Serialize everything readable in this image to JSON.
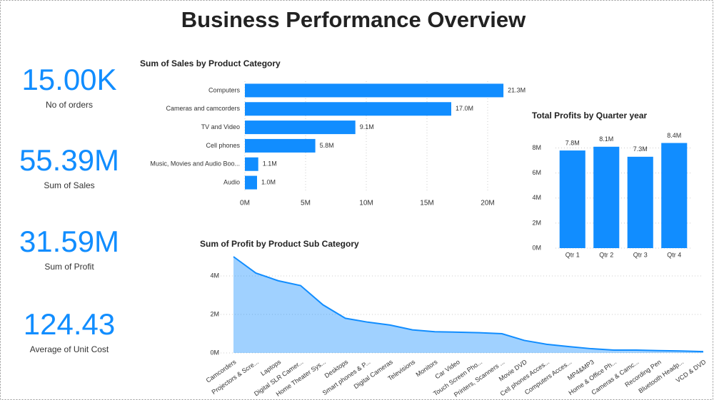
{
  "title": "Business Performance Overview",
  "kpis": [
    {
      "value": "15.00K",
      "label": "No of orders"
    },
    {
      "value": "55.39M",
      "label": "Sum of Sales"
    },
    {
      "value": "31.59M",
      "label": "Sum of Profit"
    },
    {
      "value": "124.43",
      "label": "Average of Unit Cost"
    }
  ],
  "chart_data": [
    {
      "type": "bar",
      "orientation": "horizontal",
      "title": "Sum of Sales by Product Category",
      "categories": [
        "Computers",
        "Cameras and camcorders",
        "TV and Video",
        "Cell phones",
        "Music, Movies and Audio Boo...",
        "Audio"
      ],
      "values": [
        21300000,
        17000000,
        9100000,
        5800000,
        1100000,
        1000000
      ],
      "value_labels": [
        "21.3M",
        "17.0M",
        "9.1M",
        "5.8M",
        "1.1M",
        "1.0M"
      ],
      "color": "#118DFF",
      "grid": true,
      "xlim": [
        0,
        22000000
      ],
      "xticks": [
        {
          "value": 0,
          "label": "0M"
        },
        {
          "value": 5000000,
          "label": "5M"
        },
        {
          "value": 10000000,
          "label": "10M"
        },
        {
          "value": 15000000,
          "label": "15M"
        },
        {
          "value": 20000000,
          "label": "20M"
        }
      ]
    },
    {
      "type": "bar",
      "orientation": "vertical",
      "title": "Total Profits by Quarter year",
      "categories": [
        "Qtr 1",
        "Qtr 2",
        "Qtr 3",
        "Qtr 4"
      ],
      "values": [
        7800000,
        8100000,
        7300000,
        8400000
      ],
      "value_labels": [
        "7.8M",
        "8.1M",
        "7.3M",
        "8.4M"
      ],
      "color": "#118DFF",
      "grid": true,
      "ylim": [
        0,
        9000000
      ],
      "yticks": [
        {
          "value": 0,
          "label": "0M"
        },
        {
          "value": 2000000,
          "label": "2M"
        },
        {
          "value": 4000000,
          "label": "4M"
        },
        {
          "value": 6000000,
          "label": "6M"
        },
        {
          "value": 8000000,
          "label": "8M"
        }
      ]
    },
    {
      "type": "area",
      "title": "Sum of Profit by Product Sub Category",
      "categories": [
        "Camcorders",
        "Projectors & Scre...",
        "Laptops",
        "Digital SLR Camer...",
        "Home Theater Sys...",
        "Desktops",
        "Smart phones & P...",
        "Digital Cameras",
        "Televisions",
        "Monitors",
        "Car Video",
        "Touch Screen Pho...",
        "Printers, Scanners ...",
        "Movie DVD",
        "Cell phones Acces...",
        "Computers Acces...",
        "MP4&MP3",
        "Home & Office Ph...",
        "Cameras & Camc...",
        "Recording Pen",
        "Bluetooth Headp...",
        "VCD & DVD"
      ],
      "values": [
        5000000,
        4150000,
        3750000,
        3500000,
        2500000,
        1800000,
        1600000,
        1450000,
        1200000,
        1100000,
        1080000,
        1050000,
        1000000,
        650000,
        450000,
        330000,
        220000,
        150000,
        150000,
        120000,
        100000,
        70000
      ],
      "color": "#118DFF",
      "grid": true,
      "ylim": [
        0,
        5000000
      ],
      "yticks": [
        {
          "value": 0,
          "label": "0M"
        },
        {
          "value": 2000000,
          "label": "2M"
        },
        {
          "value": 4000000,
          "label": "4M"
        }
      ]
    }
  ]
}
